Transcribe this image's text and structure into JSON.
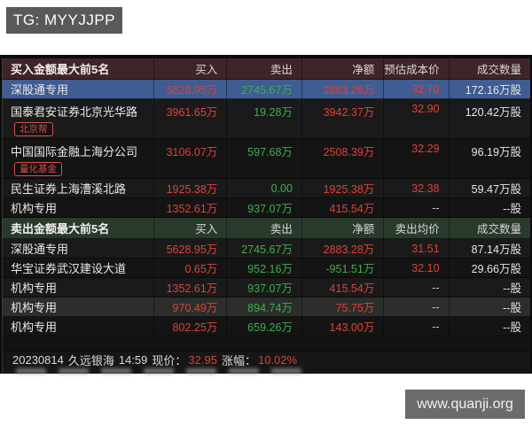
{
  "tg_badge": {
    "label": "TG: MYYJJPP"
  },
  "watermark": {
    "label": "www.quanji.org"
  },
  "colors": {
    "up": "#dd4338",
    "down": "#3fae4d",
    "muted": "#cfcdca",
    "tag": "#d4504a",
    "buy_header_bg": "#3e2527",
    "sell_header_bg": "#293a2d",
    "highlight_row_bg": "#3f5c93",
    "board_bg": "#151515"
  },
  "buy_table": {
    "title": "买入金额最大前5名",
    "columns": [
      "买入",
      "卖出",
      "净额",
      "预估成本价",
      "成交数量"
    ],
    "rows": [
      {
        "name": "深股通专用",
        "tag": "",
        "bg": "hl",
        "buy": "5628.95万",
        "sell": "2745.67万",
        "net": "2883.28万",
        "net_dir": "up",
        "price": "32.70",
        "price_dir": "up",
        "volume": "172.16万股"
      },
      {
        "name": "国泰君安证券北京光华路",
        "tag": "北京帮",
        "bg": "a",
        "buy": "3961.65万",
        "sell": "19.28万",
        "net": "3942.37万",
        "net_dir": "up",
        "price": "32.90",
        "price_dir": "up",
        "volume": "120.42万股"
      },
      {
        "name": "中国国际金融上海分公司",
        "tag": "量化基金",
        "bg": "b",
        "buy": "3106.07万",
        "sell": "597.68万",
        "net": "2508.39万",
        "net_dir": "up",
        "price": "32.29",
        "price_dir": "up",
        "volume": "96.19万股"
      },
      {
        "name": "民生证券上海漕溪北路",
        "tag": "",
        "bg": "a",
        "buy": "1925.38万",
        "sell": "0.00",
        "net": "1925.38万",
        "net_dir": "up",
        "price": "32.38",
        "price_dir": "up",
        "volume": "59.47万股"
      },
      {
        "name": "机构专用",
        "tag": "",
        "bg": "b",
        "buy": "1352.61万",
        "sell": "937.07万",
        "net": "415.54万",
        "net_dir": "up",
        "price": "--",
        "price_dir": "muted",
        "volume": "--股"
      }
    ]
  },
  "sell_table": {
    "title": "卖出金额最大前5名",
    "columns": [
      "买入",
      "卖出",
      "净额",
      "卖出均价",
      "成交数量"
    ],
    "rows": [
      {
        "name": "深股通专用",
        "tag": "",
        "bg": "a",
        "buy": "5628.95万",
        "sell": "2745.67万",
        "net": "2883.28万",
        "net_dir": "up",
        "price": "31.51",
        "price_dir": "up",
        "volume": "87.14万股"
      },
      {
        "name": "华宝证券武汉建设大道",
        "tag": "",
        "bg": "b",
        "buy": "0.65万",
        "sell": "952.16万",
        "net": "-951.51万",
        "net_dir": "down",
        "price": "32.10",
        "price_dir": "up",
        "volume": "29.66万股"
      },
      {
        "name": "机构专用",
        "tag": "",
        "bg": "a",
        "buy": "1352.61万",
        "sell": "937.07万",
        "net": "415.54万",
        "net_dir": "up",
        "price": "--",
        "price_dir": "muted",
        "volume": "--股"
      },
      {
        "name": "机构专用",
        "tag": "",
        "bg": "lt",
        "buy": "970.49万",
        "sell": "894.74万",
        "net": "75.75万",
        "net_dir": "up",
        "price": "--",
        "price_dir": "muted",
        "volume": "--股"
      },
      {
        "name": "机构专用",
        "tag": "",
        "bg": "b",
        "buy": "802.25万",
        "sell": "659.26万",
        "net": "143.00万",
        "net_dir": "up",
        "price": "--",
        "price_dir": "muted",
        "volume": "--股"
      }
    ]
  },
  "footer": {
    "date": "20230814",
    "stock_name": "久远银海",
    "time": "14:59",
    "price_label": "现价：",
    "price": "32.95",
    "change_label": "涨幅：",
    "change": "10.02%"
  }
}
